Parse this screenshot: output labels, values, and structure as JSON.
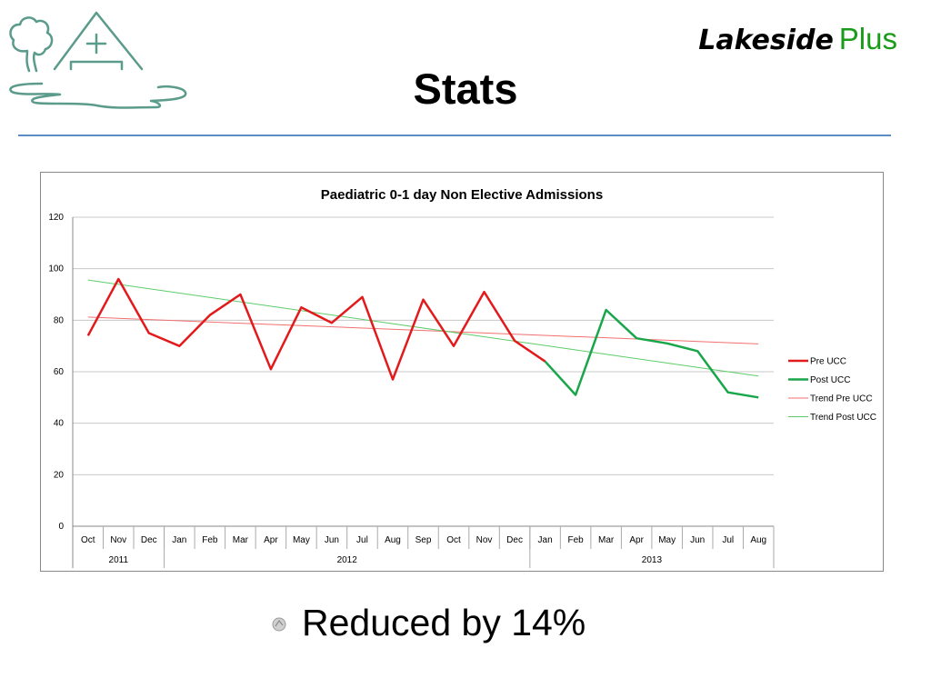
{
  "brand": {
    "part1": "Lakeside",
    "part2": "Plus"
  },
  "slide": {
    "title": "Stats",
    "bullet": "Reduced by 14%"
  },
  "colors": {
    "pre": "#e31a1c",
    "post": "#19a64a",
    "trend_pre": "#f07070",
    "trend_post": "#5ccc6a",
    "rule": "#5b8cc4",
    "brand_green": "#1a9b1a",
    "logo": "#5b9b8b"
  },
  "icons": {
    "logo": "lakeside-house-tree-logo",
    "bullet": "bullet-icon"
  },
  "chart_data": {
    "type": "line",
    "title": "Paediatric 0-1 day Non Elective Admissions",
    "xlabel": "",
    "ylabel": "",
    "ylim": [
      0,
      120
    ],
    "yticks": [
      0,
      20,
      40,
      60,
      80,
      100,
      120
    ],
    "grid": true,
    "legend_position": "right",
    "categories": [
      "Oct",
      "Nov",
      "Dec",
      "Jan",
      "Feb",
      "Mar",
      "Apr",
      "May",
      "Jun",
      "Jul",
      "Aug",
      "Sep",
      "Oct",
      "Nov",
      "Dec",
      "Jan",
      "Feb",
      "Mar",
      "Apr",
      "May",
      "Jun",
      "Jul",
      "Aug"
    ],
    "year_groups": [
      {
        "label": "2011",
        "span": 3
      },
      {
        "label": "2012",
        "span": 12
      },
      {
        "label": "2013",
        "span": 8
      }
    ],
    "series": [
      {
        "name": "Pre UCC",
        "values": [
          74,
          96,
          75,
          70,
          82,
          90,
          61,
          85,
          79,
          89,
          57,
          88,
          70,
          91,
          72,
          64,
          null,
          null,
          null,
          null,
          null,
          null,
          null
        ]
      },
      {
        "name": "Post UCC",
        "values": [
          null,
          null,
          null,
          null,
          null,
          null,
          null,
          null,
          null,
          null,
          null,
          null,
          null,
          null,
          null,
          64,
          51,
          84,
          73,
          71,
          68,
          52,
          50
        ]
      },
      {
        "name": "Trend Pre UCC",
        "values": [
          81.2,
          null,
          null,
          null,
          null,
          null,
          null,
          null,
          null,
          null,
          null,
          null,
          null,
          null,
          null,
          null,
          null,
          null,
          null,
          null,
          null,
          null,
          70.8
        ]
      },
      {
        "name": "Trend Post UCC",
        "values": [
          95.6,
          null,
          null,
          null,
          null,
          null,
          null,
          null,
          null,
          null,
          null,
          null,
          null,
          null,
          null,
          null,
          null,
          null,
          null,
          null,
          null,
          null,
          58.3
        ]
      }
    ]
  }
}
